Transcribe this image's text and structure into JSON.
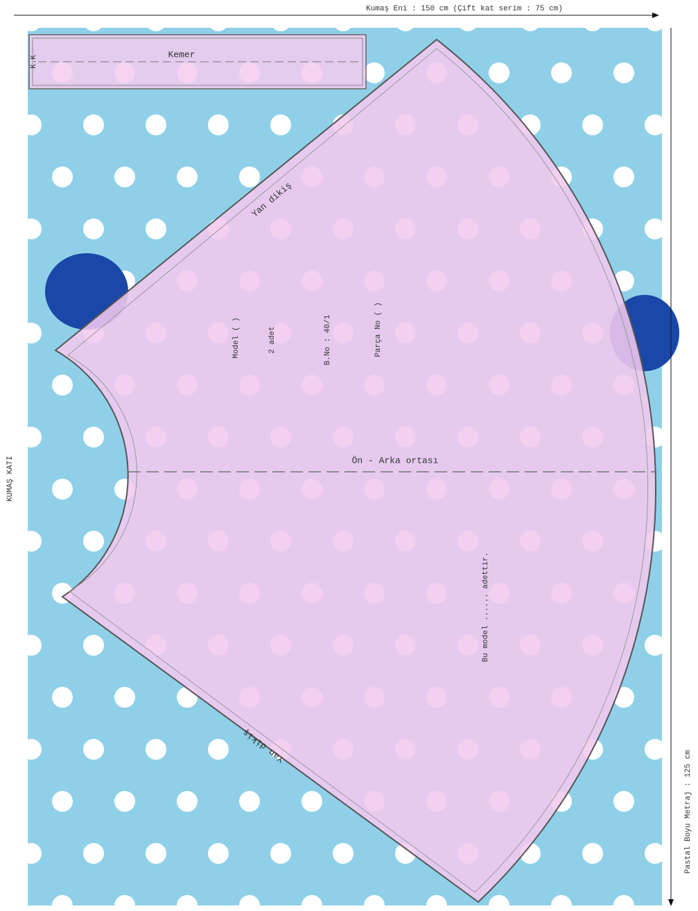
{
  "header": {
    "fabric_width": "Kumaş Eni : 150 cm (Çift kat serim : 75 cm)"
  },
  "side_labels": {
    "fabric_fold": "KUMAŞ KATI",
    "marker_length": "Pastal Boyu Metraj : 125 cm"
  },
  "belt": {
    "fold_mark": "K.K",
    "label": "Kemer"
  },
  "skirt": {
    "side_seam_top": "Yan dikiş",
    "side_seam_bottom": "Yan dikiş",
    "info": [
      "Model (   )",
      "2 adet",
      "B.No : 40/1",
      "Parça No (   )"
    ],
    "center_line": "Ön - Arka ortası",
    "note": "Bu model ...... adettir."
  }
}
